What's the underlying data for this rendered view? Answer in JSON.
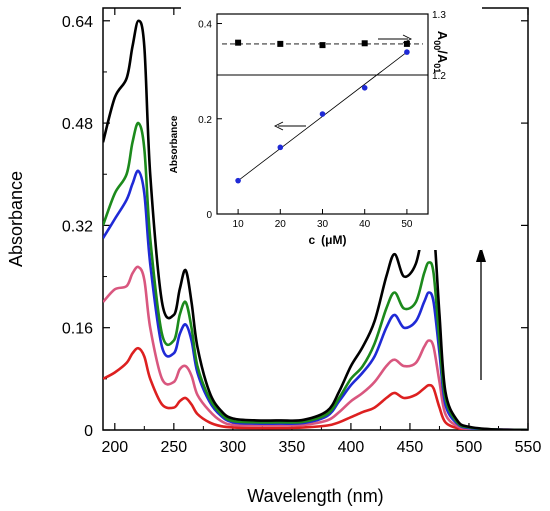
{
  "chart_data": [
    {
      "type": "line",
      "xlabel": "Wavelength (nm)",
      "ylabel": "Absorbance",
      "xlim": [
        190,
        550
      ],
      "ylim": [
        0,
        0.66
      ],
      "x_ticks": [
        "200",
        "250",
        "300",
        "350",
        "400",
        "450",
        "500",
        "550"
      ],
      "y_ticks": [
        "0",
        "0.16",
        "0.32",
        "0.48",
        "0.64"
      ],
      "x": [
        190,
        200,
        210,
        215,
        220,
        225,
        230,
        240,
        250,
        255,
        260,
        265,
        270,
        280,
        290,
        300,
        320,
        340,
        360,
        380,
        390,
        400,
        410,
        420,
        430,
        437,
        445,
        455,
        462,
        466,
        470,
        475,
        480,
        490,
        500,
        520,
        550
      ],
      "series": [
        {
          "color": "#000000",
          "values": [
            0.45,
            0.52,
            0.55,
            0.6,
            0.64,
            0.6,
            0.4,
            0.2,
            0.18,
            0.22,
            0.25,
            0.2,
            0.13,
            0.06,
            0.03,
            0.018,
            0.015,
            0.015,
            0.016,
            0.03,
            0.06,
            0.1,
            0.13,
            0.17,
            0.24,
            0.275,
            0.24,
            0.26,
            0.32,
            0.342,
            0.32,
            0.18,
            0.06,
            0.015,
            0.005,
            0.001,
            0
          ]
        },
        {
          "color": "#1c8a1c",
          "values": [
            0.32,
            0.37,
            0.4,
            0.45,
            0.48,
            0.44,
            0.3,
            0.15,
            0.14,
            0.18,
            0.2,
            0.16,
            0.1,
            0.05,
            0.025,
            0.014,
            0.012,
            0.012,
            0.013,
            0.025,
            0.05,
            0.08,
            0.1,
            0.135,
            0.19,
            0.215,
            0.19,
            0.2,
            0.245,
            0.262,
            0.245,
            0.14,
            0.05,
            0.012,
            0.004,
            0.001,
            0
          ]
        },
        {
          "color": "#1f2ad6",
          "values": [
            0.3,
            0.33,
            0.36,
            0.385,
            0.405,
            0.37,
            0.26,
            0.13,
            0.12,
            0.15,
            0.165,
            0.14,
            0.09,
            0.045,
            0.022,
            0.012,
            0.01,
            0.01,
            0.011,
            0.022,
            0.045,
            0.07,
            0.09,
            0.115,
            0.16,
            0.18,
            0.16,
            0.17,
            0.2,
            0.215,
            0.2,
            0.12,
            0.04,
            0.01,
            0.003,
            0.001,
            0
          ]
        },
        {
          "color": "#d9577f",
          "values": [
            0.2,
            0.22,
            0.225,
            0.245,
            0.255,
            0.235,
            0.16,
            0.08,
            0.075,
            0.095,
            0.1,
            0.085,
            0.055,
            0.03,
            0.014,
            0.008,
            0.007,
            0.007,
            0.008,
            0.015,
            0.028,
            0.045,
            0.058,
            0.075,
            0.1,
            0.11,
            0.1,
            0.105,
            0.13,
            0.14,
            0.13,
            0.075,
            0.025,
            0.006,
            0.002,
            0.001,
            0
          ]
        },
        {
          "color": "#dd2020",
          "values": [
            0.08,
            0.09,
            0.105,
            0.12,
            0.128,
            0.115,
            0.08,
            0.04,
            0.035,
            0.045,
            0.05,
            0.04,
            0.025,
            0.012,
            0.006,
            0.004,
            0.003,
            0.003,
            0.004,
            0.007,
            0.012,
            0.02,
            0.028,
            0.035,
            0.05,
            0.058,
            0.05,
            0.055,
            0.065,
            0.07,
            0.065,
            0.035,
            0.012,
            0.003,
            0.001,
            0,
            0
          ]
        }
      ]
    },
    {
      "type": "scatter",
      "xlabel": "c",
      "xlabel_unit": "(μM)",
      "ylabel": "Absorbance",
      "right_label_base": "A",
      "right_label_sub1": "00",
      "right_label_mid": "/A",
      "right_label_sub2": "01",
      "xlim": [
        5,
        55
      ],
      "ylim": [
        0,
        0.42
      ],
      "right_ylim": [
        1.2,
        1.3
      ],
      "x_ticks": [
        "10",
        "20",
        "30",
        "40",
        "50"
      ],
      "y_ticks": [
        "0",
        "0.2",
        "0.4"
      ],
      "right_y_ticks": [
        "1.2",
        "1.3"
      ],
      "x": [
        10,
        20,
        30,
        40,
        50
      ],
      "series": [
        {
          "axis": "left",
          "color": "#1f2ad6",
          "marker": "circle",
          "values": [
            0.07,
            0.14,
            0.21,
            0.265,
            0.34
          ],
          "fit": [
            0.07,
            0.34
          ]
        },
        {
          "axis": "right",
          "color": "#000000",
          "marker": "square",
          "values": [
            1.253,
            1.251,
            1.249,
            1.252,
            1.251
          ],
          "fit": [
            1.251,
            1.251
          ]
        }
      ]
    }
  ]
}
